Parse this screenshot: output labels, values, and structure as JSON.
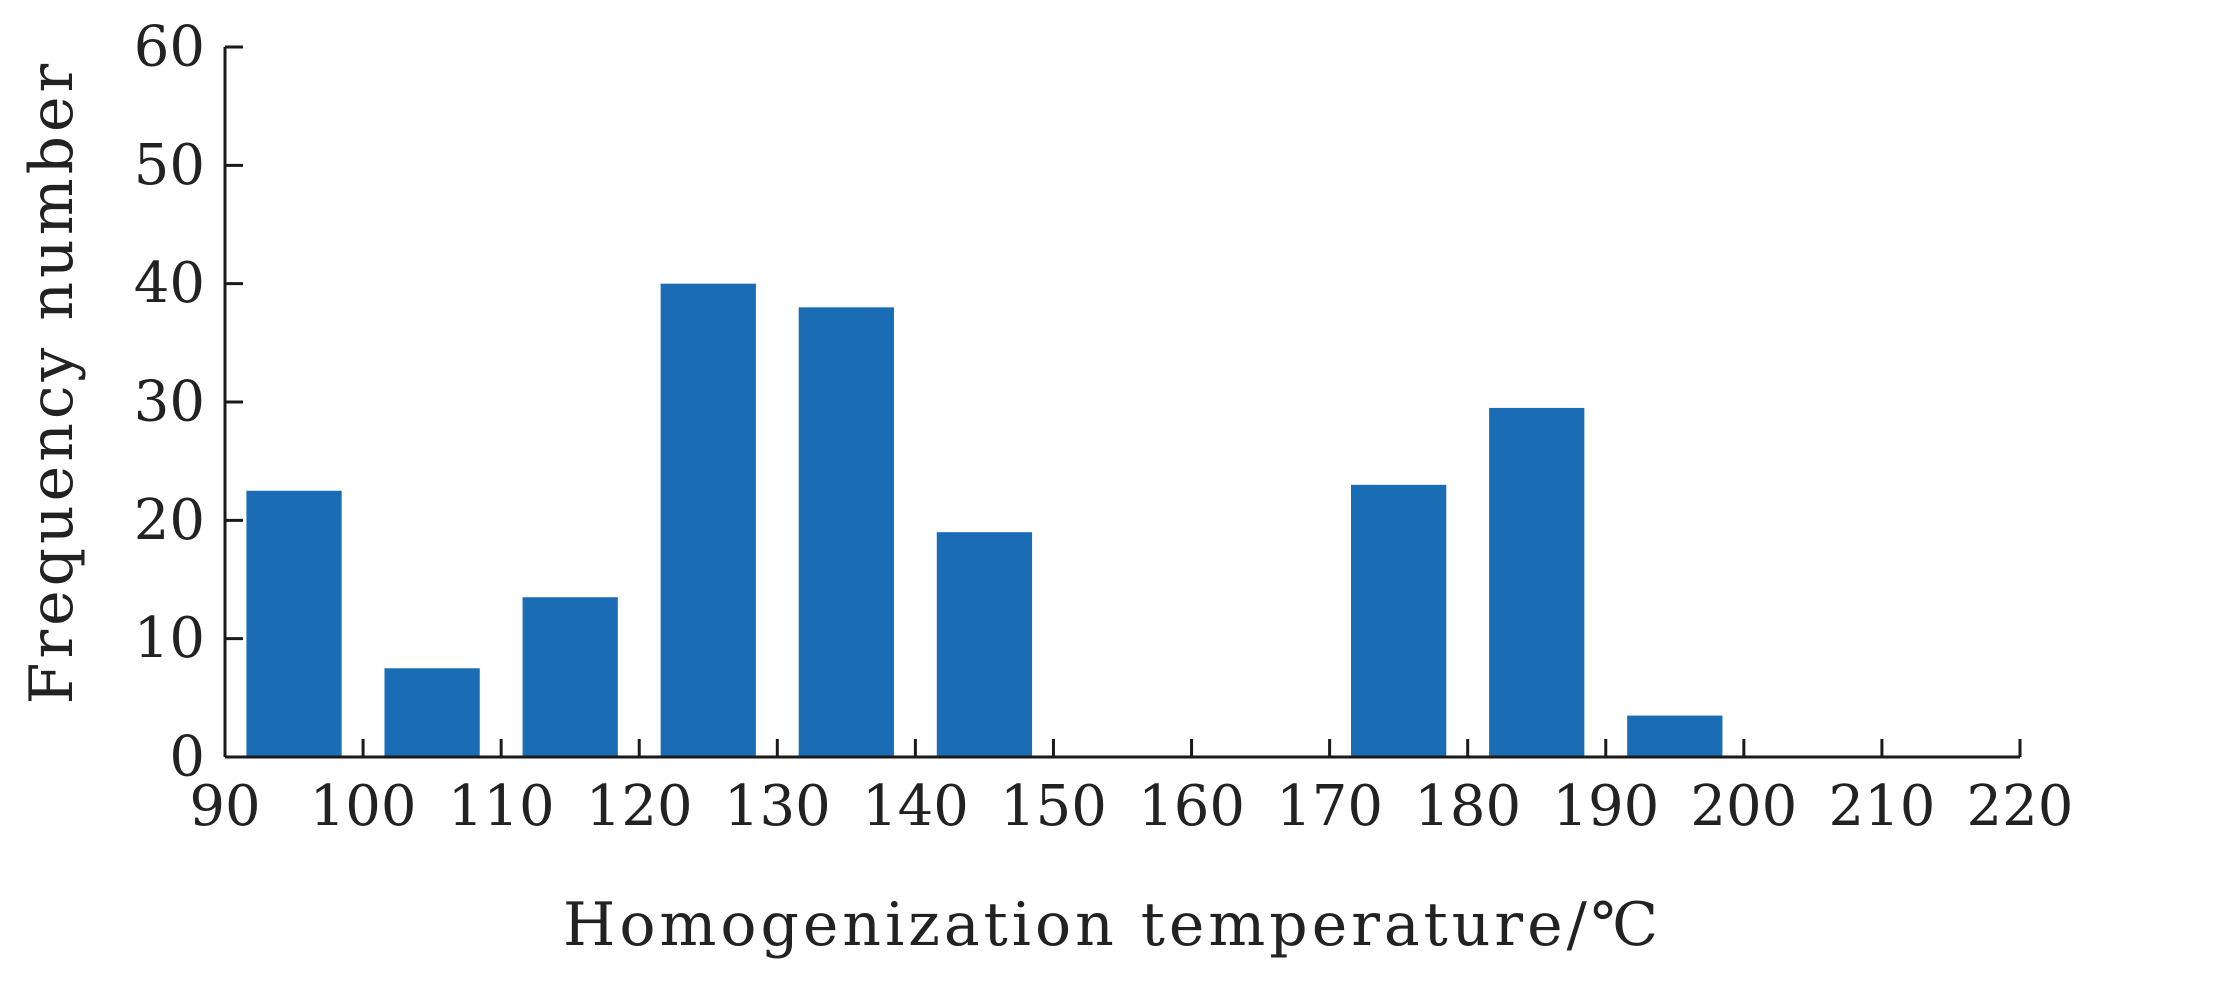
{
  "chart_data": {
    "type": "bar",
    "title": "",
    "xlabel": "Homogenization temperature/℃",
    "ylabel": "Frequency number",
    "bin_edges": [
      90,
      100,
      110,
      120,
      130,
      140,
      150,
      160,
      170,
      180,
      190,
      200,
      210,
      220
    ],
    "x_tick_labels": [
      "90",
      "100",
      "110",
      "120",
      "130",
      "140",
      "150",
      "160",
      "170",
      "180",
      "190",
      "200",
      "210",
      "220"
    ],
    "y_tick_labels": [
      "0",
      "10",
      "20",
      "30",
      "40",
      "50",
      "60"
    ],
    "xlim": [
      90,
      220
    ],
    "ylim": [
      0,
      60
    ],
    "bins": [
      {
        "range": [
          90,
          100
        ],
        "value": 22.5
      },
      {
        "range": [
          100,
          110
        ],
        "value": 7.5
      },
      {
        "range": [
          110,
          120
        ],
        "value": 13.5
      },
      {
        "range": [
          120,
          130
        ],
        "value": 40
      },
      {
        "range": [
          130,
          140
        ],
        "value": 38
      },
      {
        "range": [
          140,
          150
        ],
        "value": 19
      },
      {
        "range": [
          150,
          160
        ],
        "value": 0
      },
      {
        "range": [
          160,
          170
        ],
        "value": 0
      },
      {
        "range": [
          170,
          180
        ],
        "value": 23
      },
      {
        "range": [
          180,
          190
        ],
        "value": 29.5
      },
      {
        "range": [
          190,
          200
        ],
        "value": 3.5
      },
      {
        "range": [
          200,
          210
        ],
        "value": 0
      },
      {
        "range": [
          210,
          220
        ],
        "value": 0
      }
    ],
    "bar_color": "#1a6db5",
    "axis_color": "#1a1a1a",
    "grid": false,
    "legend": "none"
  }
}
